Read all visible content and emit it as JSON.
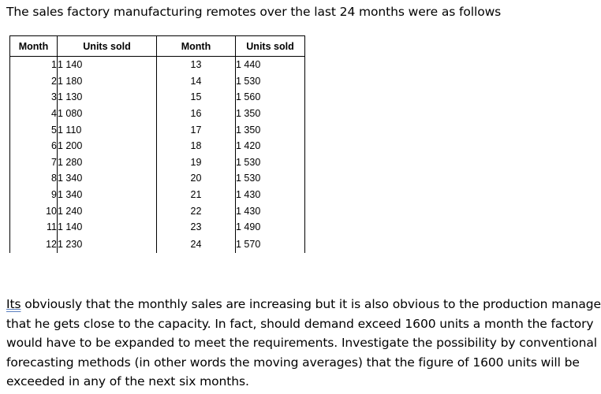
{
  "intro": "The sales factory manufacturing remotes over the last 24 months were as follows",
  "table": {
    "headers": [
      "Month",
      "Units sold",
      "Month",
      "Units sold"
    ],
    "rows": [
      [
        "1",
        "1 140",
        "13",
        "1 440"
      ],
      [
        "2",
        "1 180",
        "14",
        "1 530"
      ],
      [
        "3",
        "1 130",
        "15",
        "1 560"
      ],
      [
        "4",
        "1 080",
        "16",
        "1 350"
      ],
      [
        "5",
        "1 110",
        "17",
        "1 350"
      ],
      [
        "6",
        "1 200",
        "18",
        "1 420"
      ],
      [
        "7",
        "1 280",
        "19",
        "1 530"
      ],
      [
        "8",
        "1 340",
        "20",
        "1 530"
      ],
      [
        "9",
        "1 340",
        "21",
        "1 430"
      ],
      [
        "10",
        "1 240",
        "22",
        "1 430"
      ],
      [
        "11",
        "1 140",
        "23",
        "1 490"
      ],
      [
        "12",
        "1 230",
        "24",
        "1 570"
      ]
    ]
  },
  "paragraph": {
    "first_word": "Its",
    "line1_rest": " obviously that the monthly sales are increasing but it is also obvious to the production manager",
    "line2": "that he gets close to the capacity. In fact, should demand exceed 1600 units a month the factory",
    "line3": "would have to be expanded to meet the requirements. Investigate the possibility by conventional",
    "line4": "forecasting methods (in other words the moving averages) that the figure of 1600 units will be",
    "line5": "exceeded in any of the next six months."
  }
}
